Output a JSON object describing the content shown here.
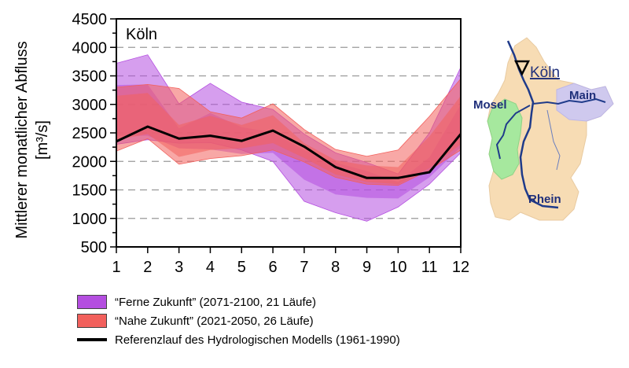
{
  "chart_data": {
    "type": "area",
    "title": "Köln",
    "ylabel": "Mittlerer monatlicher Abfluss",
    "yunit": "[m³/s]",
    "x": [
      1,
      2,
      3,
      4,
      5,
      6,
      7,
      8,
      9,
      10,
      11,
      12
    ],
    "xlim": [
      1,
      12
    ],
    "ylim": [
      500,
      4500
    ],
    "yticks": [
      500,
      1000,
      1500,
      2000,
      2500,
      3000,
      3500,
      4000,
      4500
    ],
    "grid": "horizontal-dashed",
    "series": [
      {
        "name": "“Ferne Zukunft” (2071-2100, 21 Läufe)",
        "type": "band",
        "color": "#b44ee0",
        "upper": [
          3720,
          3870,
          3010,
          3370,
          3040,
          2910,
          2480,
          2150,
          1980,
          1780,
          2500,
          3650
        ],
        "lower": [
          2300,
          2380,
          2320,
          2330,
          2200,
          2000,
          1300,
          1100,
          950,
          1200,
          1600,
          2150
        ],
        "inner_upper": [
          3340,
          3350,
          2580,
          2850,
          2600,
          2510,
          2200,
          1980,
          1830,
          1640,
          2070,
          3000
        ],
        "inner_lower": [
          2450,
          2450,
          2230,
          2210,
          2130,
          2150,
          1680,
          1420,
          1360,
          1350,
          1720,
          2250
        ]
      },
      {
        "name": "“Nahe Zukunft” (2021-2050, 26 Läufe)",
        "type": "band",
        "color": "#f2605c",
        "upper": [
          3300,
          3350,
          3280,
          2870,
          2760,
          3010,
          2560,
          2210,
          2090,
          2200,
          2790,
          3450
        ],
        "lower": [
          2180,
          2400,
          1950,
          2050,
          2100,
          2200,
          1990,
          1720,
          1600,
          1580,
          1850,
          2200
        ],
        "inner_upper": [
          3150,
          3200,
          2640,
          2800,
          2640,
          2810,
          2320,
          2020,
          1930,
          1900,
          2440,
          3150
        ],
        "inner_lower": [
          2380,
          2480,
          2080,
          2200,
          2230,
          2320,
          2060,
          1770,
          1640,
          1600,
          1880,
          2300
        ]
      },
      {
        "name": "Referenzlauf des Hydrologischen Modells (1961-1990)",
        "type": "line",
        "color": "#000000",
        "values": [
          2350,
          2610,
          2400,
          2450,
          2360,
          2540,
          2260,
          1900,
          1710,
          1710,
          1810,
          2480
        ]
      }
    ],
    "legend_position": "below"
  },
  "map": {
    "city_label": "Köln",
    "rivers": [
      "Mosel",
      "Main",
      "Rhein"
    ],
    "colors": {
      "basin": "#f7dcb4",
      "mosel_basin": "#a6e89e",
      "main_basin": "#cfc9ee",
      "river": "#1f3b8a",
      "label": "#1f2f7a"
    }
  }
}
